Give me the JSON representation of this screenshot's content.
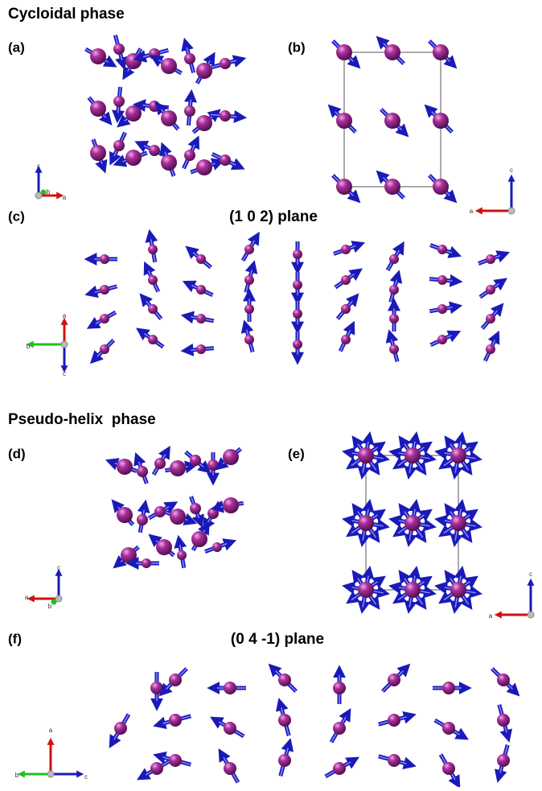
{
  "sections": [
    {
      "title": "Cycloidal phase",
      "panels": [
        {
          "label": "(a)",
          "axes": [
            "c",
            "b",
            "a"
          ]
        },
        {
          "label": "(b)",
          "axes": [
            "c",
            "a"
          ]
        },
        {
          "label": "(c)",
          "caption": "(1 0 2) plane",
          "axes": [
            "a",
            "b",
            "c"
          ]
        }
      ]
    },
    {
      "title": "Pseudo-helix  phase",
      "panels": [
        {
          "label": "(d)",
          "axes": [
            "c",
            "a",
            "b"
          ]
        },
        {
          "label": "(e)",
          "axes": [
            "c",
            "a"
          ]
        },
        {
          "label": "(f)",
          "caption": "(0 4 -1) plane",
          "axes": [
            "a",
            "b",
            "c"
          ]
        }
      ]
    }
  ]
}
